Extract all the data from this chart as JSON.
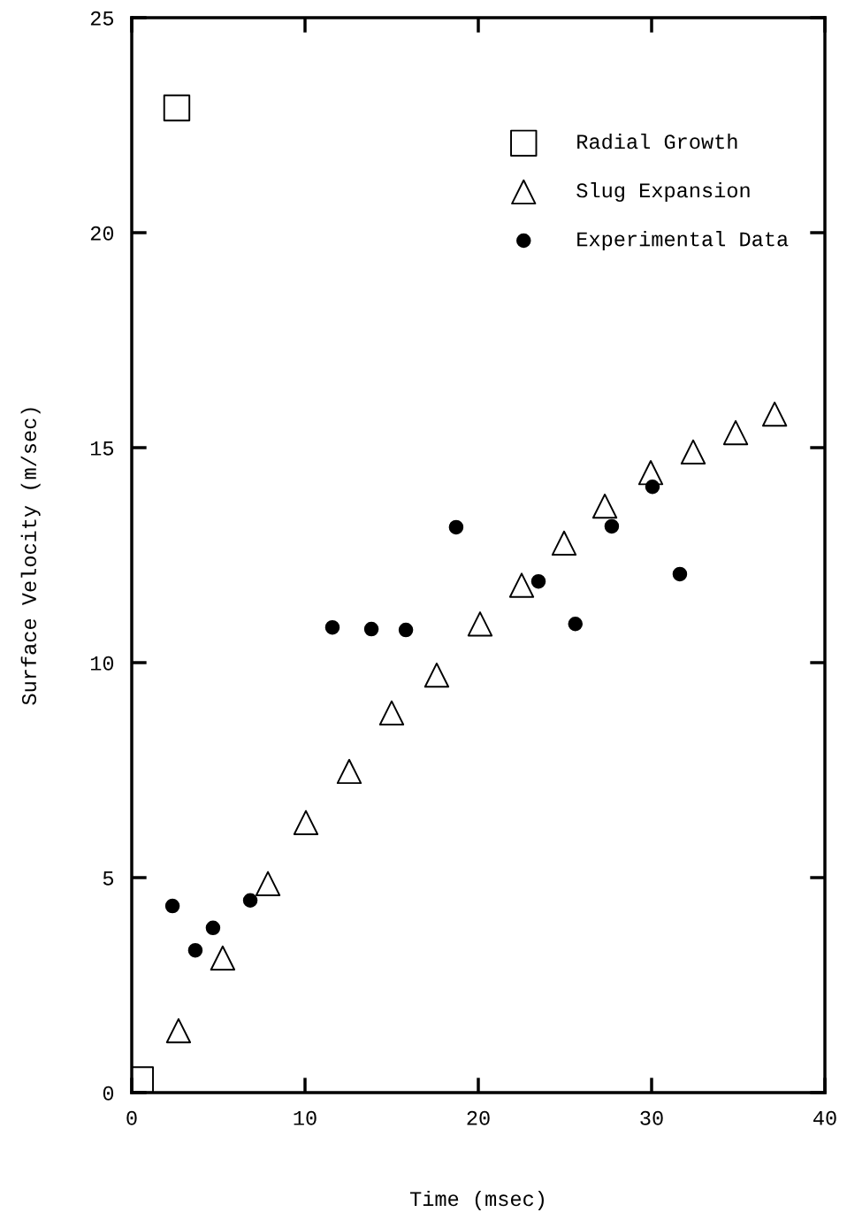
{
  "chart_data": {
    "type": "scatter",
    "xlabel": "Time (msec)",
    "ylabel": "Surface Velocity (m/sec)",
    "xlim": [
      0,
      40
    ],
    "ylim": [
      0,
      25
    ],
    "xticks": [
      0,
      10,
      20,
      30,
      40
    ],
    "yticks": [
      0,
      5,
      10,
      15,
      20,
      25
    ],
    "grid": false,
    "legend": "top right",
    "series": [
      {
        "name": "Radial Growth",
        "color": "#000000",
        "marker": "square",
        "x": [
          0.5,
          2.6
        ],
        "values": [
          0.3,
          22.9
        ]
      },
      {
        "name": "Slug Expansion",
        "color": "#000000",
        "marker": "triangle",
        "x": [
          2.7,
          5.25,
          7.86,
          10.05,
          12.55,
          15.0,
          17.6,
          20.1,
          22.5,
          24.95,
          27.3,
          29.95,
          32.4,
          34.85,
          37.1
        ],
        "values": [
          1.44,
          3.13,
          4.86,
          6.28,
          7.47,
          8.83,
          9.71,
          10.9,
          11.8,
          12.78,
          13.64,
          14.42,
          14.9,
          15.35,
          15.78
        ]
      },
      {
        "name": "Experimental Data",
        "color": "#000000",
        "marker": "circle",
        "x": [
          2.35,
          3.67,
          4.69,
          6.84,
          11.58,
          13.83,
          15.82,
          18.72,
          23.47,
          25.6,
          27.7,
          30.05,
          31.63
        ],
        "values": [
          4.34,
          3.31,
          3.83,
          4.47,
          10.82,
          10.78,
          10.76,
          13.15,
          11.89,
          10.9,
          13.17,
          14.09,
          12.06
        ]
      }
    ]
  }
}
